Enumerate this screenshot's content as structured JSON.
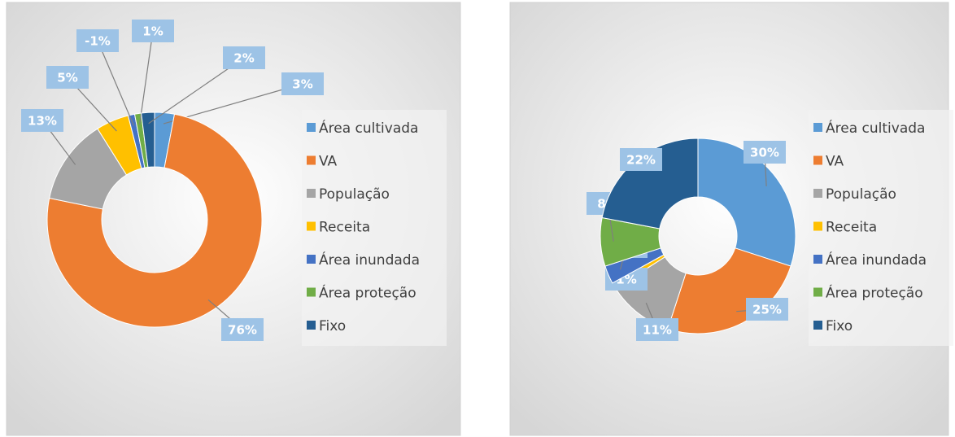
{
  "chart_data": [
    {
      "type": "donut",
      "categories": [
        "Área cultivada",
        "VA",
        "População",
        "Receita",
        "Área inundada",
        "Área proteção",
        "Fixo"
      ],
      "values": [
        3,
        76,
        13,
        5,
        -1,
        1,
        2
      ],
      "value_labels": [
        "3%",
        "76%",
        "13%",
        "5%",
        "-1%",
        "1%",
        "2%"
      ],
      "colors": [
        "#5b9bd5",
        "#ed7d31",
        "#a5a5a5",
        "#ffc000",
        "#4472c4",
        "#70ad47",
        "#255e91"
      ],
      "legend": "right"
    },
    {
      "type": "donut",
      "categories": [
        "Área cultivada",
        "VA",
        "População",
        "Receita",
        "Área inundada",
        "Área proteção",
        "Fixo"
      ],
      "values": [
        30,
        25,
        11,
        1,
        3,
        8,
        22
      ],
      "value_labels": [
        "30%",
        "25%",
        "11%",
        "1%",
        "3%",
        "8%",
        "22%"
      ],
      "colors": [
        "#5b9bd5",
        "#ed7d31",
        "#a5a5a5",
        "#ffc000",
        "#4472c4",
        "#70ad47",
        "#255e91"
      ],
      "legend": "right"
    }
  ]
}
